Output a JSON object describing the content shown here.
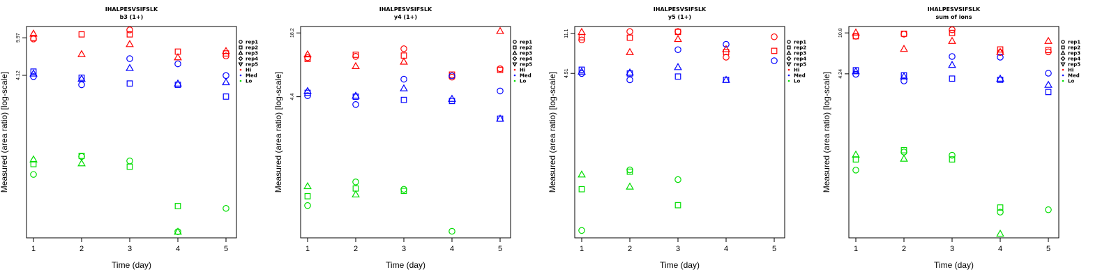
{
  "chart_data": [
    {
      "type": "scatter",
      "title": "IHALPESVSIFSLK",
      "subtitle": "b3 (1+)",
      "xlabel": "Time (day)",
      "ylabel": "Measured (area ratio) [log-scale]",
      "x_ticks": [
        "1",
        "2",
        "3",
        "4",
        "5"
      ],
      "y_ticks": [
        4.12,
        9.97
      ],
      "y_tick_labels": [
        "4.12",
        "9.97"
      ],
      "yscale": "log",
      "ylim": [
        0.09,
        13
      ],
      "legend_position": "right",
      "points": [
        {
          "x": 1,
          "y": 9.7,
          "rep": "rep1",
          "level": "Hi"
        },
        {
          "x": 1,
          "y": 9.9,
          "rep": "rep2",
          "level": "Hi"
        },
        {
          "x": 1,
          "y": 11.0,
          "rep": "rep3",
          "level": "Hi"
        },
        {
          "x": 2,
          "y": 10.8,
          "rep": "rep2",
          "level": "Hi"
        },
        {
          "x": 2,
          "y": 6.8,
          "rep": "rep3",
          "level": "Hi"
        },
        {
          "x": 3,
          "y": 12.0,
          "rep": "rep1",
          "level": "Hi"
        },
        {
          "x": 3,
          "y": 10.8,
          "rep": "rep2",
          "level": "Hi"
        },
        {
          "x": 3,
          "y": 8.6,
          "rep": "rep3",
          "level": "Hi"
        },
        {
          "x": 4,
          "y": 7.2,
          "rep": "rep2",
          "level": "Hi"
        },
        {
          "x": 4,
          "y": 6.3,
          "rep": "rep3",
          "level": "Hi"
        },
        {
          "x": 5,
          "y": 6.5,
          "rep": "rep1",
          "level": "Hi"
        },
        {
          "x": 5,
          "y": 6.9,
          "rep": "rep2",
          "level": "Hi"
        },
        {
          "x": 5,
          "y": 7.3,
          "rep": "rep3",
          "level": "Hi"
        },
        {
          "x": 1,
          "y": 4.0,
          "rep": "rep1",
          "level": "Med"
        },
        {
          "x": 1,
          "y": 4.5,
          "rep": "rep2",
          "level": "Med"
        },
        {
          "x": 1,
          "y": 4.3,
          "rep": "rep3",
          "level": "Med"
        },
        {
          "x": 2,
          "y": 3.3,
          "rep": "rep1",
          "level": "Med"
        },
        {
          "x": 2,
          "y": 3.9,
          "rep": "rep2",
          "level": "Med"
        },
        {
          "x": 2,
          "y": 3.8,
          "rep": "rep3",
          "level": "Med"
        },
        {
          "x": 3,
          "y": 6.1,
          "rep": "rep1",
          "level": "Med"
        },
        {
          "x": 3,
          "y": 3.4,
          "rep": "rep2",
          "level": "Med"
        },
        {
          "x": 3,
          "y": 4.9,
          "rep": "rep3",
          "level": "Med"
        },
        {
          "x": 4,
          "y": 5.4,
          "rep": "rep1",
          "level": "Med"
        },
        {
          "x": 4,
          "y": 3.3,
          "rep": "rep2",
          "level": "Med"
        },
        {
          "x": 4,
          "y": 3.4,
          "rep": "rep3",
          "level": "Med"
        },
        {
          "x": 5,
          "y": 4.1,
          "rep": "rep1",
          "level": "Med"
        },
        {
          "x": 5,
          "y": 2.5,
          "rep": "rep2",
          "level": "Med"
        },
        {
          "x": 5,
          "y": 3.5,
          "rep": "rep3",
          "level": "Med"
        },
        {
          "x": 1,
          "y": 0.4,
          "rep": "rep1",
          "level": "Lo"
        },
        {
          "x": 1,
          "y": 0.51,
          "rep": "rep2",
          "level": "Lo"
        },
        {
          "x": 1,
          "y": 0.57,
          "rep": "rep3",
          "level": "Lo"
        },
        {
          "x": 2,
          "y": 0.61,
          "rep": "rep1",
          "level": "Lo"
        },
        {
          "x": 2,
          "y": 0.62,
          "rep": "rep2",
          "level": "Lo"
        },
        {
          "x": 2,
          "y": 0.52,
          "rep": "rep3",
          "level": "Lo"
        },
        {
          "x": 3,
          "y": 0.55,
          "rep": "rep1",
          "level": "Lo"
        },
        {
          "x": 3,
          "y": 0.48,
          "rep": "rep2",
          "level": "Lo"
        },
        {
          "x": 4,
          "y": 0.104,
          "rep": "rep1",
          "level": "Lo"
        },
        {
          "x": 4,
          "y": 0.19,
          "rep": "rep2",
          "level": "Lo"
        },
        {
          "x": 4,
          "y": 0.104,
          "rep": "rep3",
          "level": "Lo"
        },
        {
          "x": 5,
          "y": 0.18,
          "rep": "rep1",
          "level": "Lo"
        }
      ]
    },
    {
      "type": "scatter",
      "title": "IHALPESVSIFSLK",
      "subtitle": "y4 (1+)",
      "xlabel": "Time (day)",
      "ylabel": "Measured (area ratio) [log-scale]",
      "x_ticks": [
        "1",
        "2",
        "3",
        "4",
        "5"
      ],
      "y_ticks": [
        4.4,
        18.2
      ],
      "y_tick_labels": [
        "4.4",
        "18.2"
      ],
      "yscale": "log",
      "ylim": [
        0.19,
        21
      ],
      "legend_position": "right",
      "points": [
        {
          "x": 1,
          "y": 10.5,
          "rep": "rep1",
          "level": "Hi"
        },
        {
          "x": 1,
          "y": 10.2,
          "rep": "rep2",
          "level": "Hi"
        },
        {
          "x": 1,
          "y": 11.3,
          "rep": "rep3",
          "level": "Hi"
        },
        {
          "x": 2,
          "y": 10.8,
          "rep": "rep1",
          "level": "Hi"
        },
        {
          "x": 2,
          "y": 11.2,
          "rep": "rep2",
          "level": "Hi"
        },
        {
          "x": 2,
          "y": 8.7,
          "rep": "rep3",
          "level": "Hi"
        },
        {
          "x": 3,
          "y": 12.8,
          "rep": "rep1",
          "level": "Hi"
        },
        {
          "x": 3,
          "y": 11.0,
          "rep": "rep2",
          "level": "Hi"
        },
        {
          "x": 3,
          "y": 9.6,
          "rep": "rep3",
          "level": "Hi"
        },
        {
          "x": 4,
          "y": 6.8,
          "rep": "rep1",
          "level": "Hi"
        },
        {
          "x": 4,
          "y": 7.2,
          "rep": "rep2",
          "level": "Hi"
        },
        {
          "x": 5,
          "y": 8.2,
          "rep": "rep1",
          "level": "Hi"
        },
        {
          "x": 5,
          "y": 8.0,
          "rep": "rep2",
          "level": "Hi"
        },
        {
          "x": 5,
          "y": 19.0,
          "rep": "rep3",
          "level": "Hi"
        },
        {
          "x": 1,
          "y": 4.5,
          "rep": "rep1",
          "level": "Med"
        },
        {
          "x": 1,
          "y": 4.8,
          "rep": "rep2",
          "level": "Med"
        },
        {
          "x": 1,
          "y": 5.0,
          "rep": "rep3",
          "level": "Med"
        },
        {
          "x": 2,
          "y": 3.7,
          "rep": "rep1",
          "level": "Med"
        },
        {
          "x": 2,
          "y": 4.4,
          "rep": "rep2",
          "level": "Med"
        },
        {
          "x": 2,
          "y": 4.5,
          "rep": "rep3",
          "level": "Med"
        },
        {
          "x": 3,
          "y": 6.5,
          "rep": "rep1",
          "level": "Med"
        },
        {
          "x": 3,
          "y": 4.1,
          "rep": "rep2",
          "level": "Med"
        },
        {
          "x": 3,
          "y": 5.3,
          "rep": "rep3",
          "level": "Med"
        },
        {
          "x": 4,
          "y": 7.0,
          "rep": "rep1",
          "level": "Med"
        },
        {
          "x": 4,
          "y": 4.0,
          "rep": "rep2",
          "level": "Med"
        },
        {
          "x": 4,
          "y": 4.2,
          "rep": "rep3",
          "level": "Med"
        },
        {
          "x": 5,
          "y": 5.0,
          "rep": "rep1",
          "level": "Med"
        },
        {
          "x": 5,
          "y": 2.7,
          "rep": "rep2",
          "level": "Med"
        },
        {
          "x": 5,
          "y": 2.7,
          "rep": "rep3",
          "level": "Med"
        },
        {
          "x": 1,
          "y": 0.39,
          "rep": "rep1",
          "level": "Lo"
        },
        {
          "x": 1,
          "y": 0.48,
          "rep": "rep2",
          "level": "Lo"
        },
        {
          "x": 1,
          "y": 0.6,
          "rep": "rep3",
          "level": "Lo"
        },
        {
          "x": 2,
          "y": 0.66,
          "rep": "rep1",
          "level": "Lo"
        },
        {
          "x": 2,
          "y": 0.57,
          "rep": "rep2",
          "level": "Lo"
        },
        {
          "x": 2,
          "y": 0.5,
          "rep": "rep3",
          "level": "Lo"
        },
        {
          "x": 3,
          "y": 0.56,
          "rep": "rep1",
          "level": "Lo"
        },
        {
          "x": 3,
          "y": 0.54,
          "rep": "rep2",
          "level": "Lo"
        },
        {
          "x": 4,
          "y": 0.22,
          "rep": "rep1",
          "level": "Lo"
        }
      ]
    },
    {
      "type": "scatter",
      "title": "IHALPESVSIFSLK",
      "subtitle": "y5 (1+)",
      "xlabel": "Time (day)",
      "ylabel": "Measured (area ratio) [log-scale]",
      "x_ticks": [
        "1",
        "2",
        "3",
        "4",
        "5"
      ],
      "y_ticks": [
        4.51,
        11.1
      ],
      "y_tick_labels": [
        "4.51",
        "11.1"
      ],
      "yscale": "log",
      "ylim": [
        0.11,
        13
      ],
      "legend_position": "right",
      "points": [
        {
          "x": 1,
          "y": 9.6,
          "rep": "rep1",
          "level": "Hi"
        },
        {
          "x": 1,
          "y": 10.2,
          "rep": "rep2",
          "level": "Hi"
        },
        {
          "x": 1,
          "y": 11.5,
          "rep": "rep3",
          "level": "Hi"
        },
        {
          "x": 2,
          "y": 11.6,
          "rep": "rep1",
          "level": "Hi"
        },
        {
          "x": 2,
          "y": 10.1,
          "rep": "rep2",
          "level": "Hi"
        },
        {
          "x": 2,
          "y": 7.3,
          "rep": "rep3",
          "level": "Hi"
        },
        {
          "x": 3,
          "y": 11.6,
          "rep": "rep1",
          "level": "Hi"
        },
        {
          "x": 3,
          "y": 11.5,
          "rep": "rep2",
          "level": "Hi"
        },
        {
          "x": 3,
          "y": 9.8,
          "rep": "rep3",
          "level": "Hi"
        },
        {
          "x": 4,
          "y": 6.5,
          "rep": "rep1",
          "level": "Hi"
        },
        {
          "x": 4,
          "y": 7.3,
          "rep": "rep2",
          "level": "Hi"
        },
        {
          "x": 4,
          "y": 7.8,
          "rep": "rep3",
          "level": "Hi"
        },
        {
          "x": 5,
          "y": 10.3,
          "rep": "rep1",
          "level": "Hi"
        },
        {
          "x": 5,
          "y": 7.5,
          "rep": "rep2",
          "level": "Hi"
        },
        {
          "x": 1,
          "y": 4.5,
          "rep": "rep1",
          "level": "Med"
        },
        {
          "x": 1,
          "y": 4.9,
          "rep": "rep2",
          "level": "Med"
        },
        {
          "x": 1,
          "y": 4.7,
          "rep": "rep3",
          "level": "Med"
        },
        {
          "x": 2,
          "y": 3.9,
          "rep": "rep1",
          "level": "Med"
        },
        {
          "x": 2,
          "y": 4.5,
          "rep": "rep2",
          "level": "Med"
        },
        {
          "x": 2,
          "y": 4.6,
          "rep": "rep3",
          "level": "Med"
        },
        {
          "x": 3,
          "y": 7.7,
          "rep": "rep1",
          "level": "Med"
        },
        {
          "x": 3,
          "y": 4.2,
          "rep": "rep2",
          "level": "Med"
        },
        {
          "x": 3,
          "y": 5.2,
          "rep": "rep3",
          "level": "Med"
        },
        {
          "x": 4,
          "y": 8.7,
          "rep": "rep1",
          "level": "Med"
        },
        {
          "x": 4,
          "y": 3.9,
          "rep": "rep2",
          "level": "Med"
        },
        {
          "x": 4,
          "y": 3.9,
          "rep": "rep3",
          "level": "Med"
        },
        {
          "x": 5,
          "y": 6.0,
          "rep": "rep1",
          "level": "Med"
        },
        {
          "x": 1,
          "y": 0.13,
          "rep": "rep1",
          "level": "Lo"
        },
        {
          "x": 1,
          "y": 0.33,
          "rep": "rep2",
          "level": "Lo"
        },
        {
          "x": 1,
          "y": 0.46,
          "rep": "rep3",
          "level": "Lo"
        },
        {
          "x": 2,
          "y": 0.51,
          "rep": "rep1",
          "level": "Lo"
        },
        {
          "x": 2,
          "y": 0.49,
          "rep": "rep2",
          "level": "Lo"
        },
        {
          "x": 2,
          "y": 0.35,
          "rep": "rep3",
          "level": "Lo"
        },
        {
          "x": 3,
          "y": 0.41,
          "rep": "rep1",
          "level": "Lo"
        },
        {
          "x": 3,
          "y": 0.23,
          "rep": "rep2",
          "level": "Lo"
        }
      ]
    },
    {
      "type": "scatter",
      "title": "IHALPESVSIFSLK",
      "subtitle": "sum of ions",
      "xlabel": "Time (day)",
      "ylabel": "Measured (area ratio) [log-scale]",
      "x_ticks": [
        "1",
        "2",
        "3",
        "4",
        "5"
      ],
      "y_ticks": [
        4.24,
        10.8
      ],
      "y_tick_labels": [
        "4.24",
        "10.8"
      ],
      "yscale": "log",
      "ylim": [
        0.1,
        12.5
      ],
      "legend_position": "right",
      "points": [
        {
          "x": 1,
          "y": 10.0,
          "rep": "rep1",
          "level": "Hi"
        },
        {
          "x": 1,
          "y": 10.0,
          "rep": "rep2",
          "level": "Hi"
        },
        {
          "x": 1,
          "y": 10.9,
          "rep": "rep3",
          "level": "Hi"
        },
        {
          "x": 2,
          "y": 10.5,
          "rep": "rep1",
          "level": "Hi"
        },
        {
          "x": 2,
          "y": 10.6,
          "rep": "rep2",
          "level": "Hi"
        },
        {
          "x": 2,
          "y": 7.5,
          "rep": "rep3",
          "level": "Hi"
        },
        {
          "x": 3,
          "y": 11.6,
          "rep": "rep1",
          "level": "Hi"
        },
        {
          "x": 3,
          "y": 10.8,
          "rep": "rep2",
          "level": "Hi"
        },
        {
          "x": 3,
          "y": 9.0,
          "rep": "rep3",
          "level": "Hi"
        },
        {
          "x": 4,
          "y": 6.9,
          "rep": "rep1",
          "level": "Hi"
        },
        {
          "x": 4,
          "y": 7.4,
          "rep": "rep2",
          "level": "Hi"
        },
        {
          "x": 4,
          "y": 7.0,
          "rep": "rep3",
          "level": "Hi"
        },
        {
          "x": 5,
          "y": 7.0,
          "rep": "rep1",
          "level": "Hi"
        },
        {
          "x": 5,
          "y": 7.3,
          "rep": "rep2",
          "level": "Hi"
        },
        {
          "x": 5,
          "y": 9.0,
          "rep": "rep3",
          "level": "Hi"
        },
        {
          "x": 1,
          "y": 4.2,
          "rep": "rep1",
          "level": "Med"
        },
        {
          "x": 1,
          "y": 4.6,
          "rep": "rep2",
          "level": "Med"
        },
        {
          "x": 1,
          "y": 4.5,
          "rep": "rep3",
          "level": "Med"
        },
        {
          "x": 2,
          "y": 3.6,
          "rep": "rep1",
          "level": "Med"
        },
        {
          "x": 2,
          "y": 4.1,
          "rep": "rep2",
          "level": "Med"
        },
        {
          "x": 2,
          "y": 4.0,
          "rep": "rep3",
          "level": "Med"
        },
        {
          "x": 3,
          "y": 6.3,
          "rep": "rep1",
          "level": "Med"
        },
        {
          "x": 3,
          "y": 3.8,
          "rep": "rep2",
          "level": "Med"
        },
        {
          "x": 3,
          "y": 5.2,
          "rep": "rep3",
          "level": "Med"
        },
        {
          "x": 4,
          "y": 6.2,
          "rep": "rep1",
          "level": "Med"
        },
        {
          "x": 4,
          "y": 3.7,
          "rep": "rep2",
          "level": "Med"
        },
        {
          "x": 4,
          "y": 3.8,
          "rep": "rep3",
          "level": "Med"
        },
        {
          "x": 5,
          "y": 4.3,
          "rep": "rep1",
          "level": "Med"
        },
        {
          "x": 5,
          "y": 2.8,
          "rep": "rep2",
          "level": "Med"
        },
        {
          "x": 5,
          "y": 3.3,
          "rep": "rep3",
          "level": "Med"
        },
        {
          "x": 1,
          "y": 0.47,
          "rep": "rep1",
          "level": "Lo"
        },
        {
          "x": 1,
          "y": 0.6,
          "rep": "rep2",
          "level": "Lo"
        },
        {
          "x": 1,
          "y": 0.67,
          "rep": "rep3",
          "level": "Lo"
        },
        {
          "x": 2,
          "y": 0.71,
          "rep": "rep1",
          "level": "Lo"
        },
        {
          "x": 2,
          "y": 0.74,
          "rep": "rep2",
          "level": "Lo"
        },
        {
          "x": 2,
          "y": 0.61,
          "rep": "rep3",
          "level": "Lo"
        },
        {
          "x": 3,
          "y": 0.66,
          "rep": "rep1",
          "level": "Lo"
        },
        {
          "x": 3,
          "y": 0.6,
          "rep": "rep2",
          "level": "Lo"
        },
        {
          "x": 4,
          "y": 0.18,
          "rep": "rep1",
          "level": "Lo"
        },
        {
          "x": 4,
          "y": 0.2,
          "rep": "rep2",
          "level": "Lo"
        },
        {
          "x": 4,
          "y": 0.11,
          "rep": "rep3",
          "level": "Lo"
        },
        {
          "x": 5,
          "y": 0.19,
          "rep": "rep1",
          "level": "Lo"
        }
      ]
    }
  ],
  "legend": {
    "shapes": [
      {
        "label": "rep1",
        "shape": "circle"
      },
      {
        "label": "rep2",
        "shape": "square"
      },
      {
        "label": "rep3",
        "shape": "triangle-up"
      },
      {
        "label": "rep4",
        "shape": "diamond"
      },
      {
        "label": "rep5",
        "shape": "triangle-down"
      }
    ],
    "levels": [
      {
        "label": "Hi",
        "color": "#ff0000"
      },
      {
        "label": "Med",
        "color": "#0000ff"
      },
      {
        "label": "Lo",
        "color": "#00dd00"
      }
    ]
  }
}
